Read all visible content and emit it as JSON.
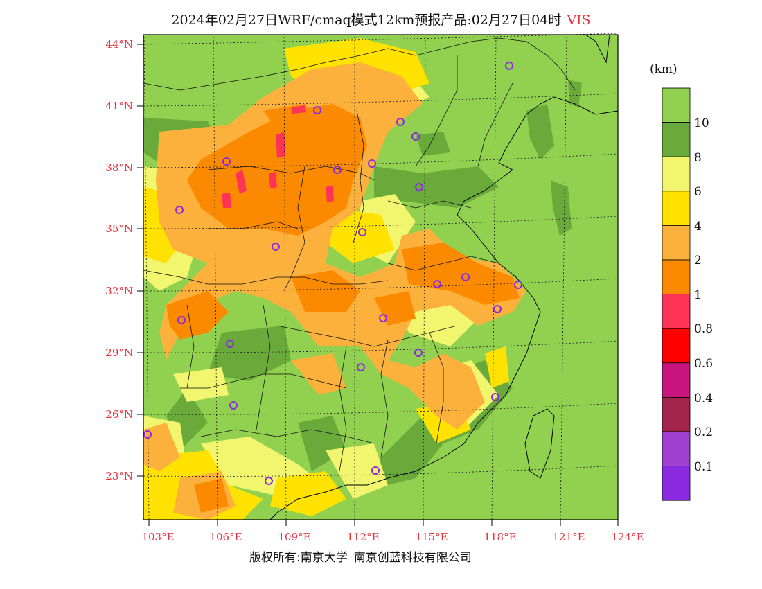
{
  "title": {
    "text": "2024年02月27日WRF/cmaq模式12km预报产品:02月27日04时",
    "variable": "VIS"
  },
  "lat_labels": [
    "44°N",
    "41°N",
    "38°N",
    "35°N",
    "32°N",
    "29°N",
    "26°N",
    "23°N"
  ],
  "lon_labels": [
    "103°E",
    "106°E",
    "109°E",
    "112°E",
    "115°E",
    "118°E",
    "121°E",
    "124°E"
  ],
  "colorbar": {
    "unit": "(km)",
    "labels": [
      "10",
      "8",
      "6",
      "4",
      "2",
      "1",
      "0.8",
      "0.6",
      "0.4",
      "0.2",
      "0.1"
    ],
    "colors": [
      "#92d050",
      "#6aaa3a",
      "#f2f56e",
      "#ffe200",
      "#fbb13c",
      "#fb8a00",
      "#ff3355",
      "#ff0000",
      "#c8147e",
      "#a3254d",
      "#a040d0",
      "#8a2be2"
    ]
  },
  "footer": {
    "left": "版权所有:南京大学",
    "right": "南京创蓝科技有限公司"
  }
}
